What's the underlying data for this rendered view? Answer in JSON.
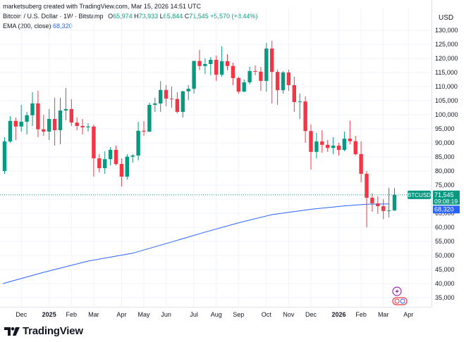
{
  "header": {
    "credit": "marketsuberg created with TradingView.com, Mar 15, 2026 14:51 UTC"
  },
  "legend": {
    "symbol": "Bitcoin / U.S. Dollar · 1W · Bitstamp",
    "o_label": "O",
    "o_value": "65,974",
    "h_label": "H",
    "h_value": "73,933",
    "l_label": "L",
    "l_value": "65,844",
    "c_label": "C",
    "c_value": "71,545",
    "change": "+5,570 (+8.44%)",
    "ema_label": "EMA (200, close)",
    "ema_value": "68,320"
  },
  "axis": {
    "currency": "USD",
    "price_tag_symbol": "BTCUSD",
    "price_tag_value": "71,545",
    "price_tag_countdown": "09:08:19",
    "ema_tag_value": "68,320"
  },
  "footer": {
    "brand": "TradingView"
  },
  "colors": {
    "up": "#089981",
    "down": "#f23645",
    "ema": "#2962ff",
    "grid": "#f0f3fa"
  },
  "chart_data": {
    "type": "candlestick",
    "symbol": "BTCUSD",
    "timeframe": "1W",
    "ylim": [
      31000,
      132000
    ],
    "yticks": [
      35000,
      40000,
      45000,
      50000,
      55000,
      60000,
      65000,
      70000,
      75000,
      80000,
      85000,
      90000,
      95000,
      100000,
      105000,
      110000,
      115000,
      120000,
      125000,
      130000
    ],
    "ytick_labels": [
      "35,000",
      "40,000",
      "45,000",
      "50,000",
      "55,000",
      "60,000",
      "65,000",
      "70,000",
      "75,000",
      "80,000",
      "85,000",
      "90,000",
      "95,000",
      "100,000",
      "105,000",
      "110,000",
      "115,000",
      "120,000",
      "125,000",
      "130,000"
    ],
    "xticks": [
      {
        "label": "Dec",
        "index": 3,
        "bold": false
      },
      {
        "label": "2025",
        "index": 8,
        "bold": true
      },
      {
        "label": "Feb",
        "index": 12,
        "bold": false
      },
      {
        "label": "Mar",
        "index": 16,
        "bold": false
      },
      {
        "label": "Apr",
        "index": 21,
        "bold": false
      },
      {
        "label": "May",
        "index": 25,
        "bold": false
      },
      {
        "label": "Jun",
        "index": 29,
        "bold": false
      },
      {
        "label": "Jul",
        "index": 34,
        "bold": false
      },
      {
        "label": "Aug",
        "index": 38,
        "bold": false
      },
      {
        "label": "Sep",
        "index": 42,
        "bold": false
      },
      {
        "label": "Oct",
        "index": 47,
        "bold": false
      },
      {
        "label": "Nov",
        "index": 51,
        "bold": false
      },
      {
        "label": "Dec",
        "index": 55,
        "bold": false
      },
      {
        "label": "2026",
        "index": 60,
        "bold": true
      },
      {
        "label": "Feb",
        "index": 64,
        "bold": false
      },
      {
        "label": "Mar",
        "index": 68,
        "bold": false
      },
      {
        "label": "Apr",
        "index": 72.5,
        "bold": false
      }
    ],
    "candles": [
      {
        "o": 80000,
        "h": 92000,
        "l": 79000,
        "c": 90500
      },
      {
        "o": 90500,
        "h": 99500,
        "l": 90000,
        "c": 97800
      },
      {
        "o": 97800,
        "h": 99000,
        "l": 91000,
        "c": 95800
      },
      {
        "o": 95800,
        "h": 103500,
        "l": 94000,
        "c": 97500
      },
      {
        "o": 97500,
        "h": 101000,
        "l": 93000,
        "c": 99800
      },
      {
        "o": 99800,
        "h": 108000,
        "l": 96000,
        "c": 104000
      },
      {
        "o": 104000,
        "h": 108500,
        "l": 92000,
        "c": 94800
      },
      {
        "o": 94800,
        "h": 100000,
        "l": 92500,
        "c": 94000
      },
      {
        "o": 94000,
        "h": 102000,
        "l": 91000,
        "c": 98500
      },
      {
        "o": 98500,
        "h": 106000,
        "l": 89000,
        "c": 94500
      },
      {
        "o": 94500,
        "h": 106000,
        "l": 89500,
        "c": 101500
      },
      {
        "o": 101500,
        "h": 109500,
        "l": 98000,
        "c": 102000
      },
      {
        "o": 102000,
        "h": 105500,
        "l": 96000,
        "c": 97200
      },
      {
        "o": 97200,
        "h": 99000,
        "l": 94500,
        "c": 96000
      },
      {
        "o": 96000,
        "h": 98500,
        "l": 93000,
        "c": 95500
      },
      {
        "o": 95500,
        "h": 97000,
        "l": 94000,
        "c": 95800
      },
      {
        "o": 95800,
        "h": 96500,
        "l": 78000,
        "c": 84500
      },
      {
        "o": 84500,
        "h": 86000,
        "l": 79500,
        "c": 81000
      },
      {
        "o": 81000,
        "h": 87000,
        "l": 79000,
        "c": 84200
      },
      {
        "o": 84200,
        "h": 88500,
        "l": 82000,
        "c": 87500
      },
      {
        "o": 87500,
        "h": 89000,
        "l": 82000,
        "c": 82500
      },
      {
        "o": 82500,
        "h": 84500,
        "l": 74500,
        "c": 78000
      },
      {
        "o": 78000,
        "h": 86000,
        "l": 77000,
        "c": 85100
      },
      {
        "o": 85100,
        "h": 86000,
        "l": 83000,
        "c": 85500
      },
      {
        "o": 85500,
        "h": 97500,
        "l": 83800,
        "c": 94300
      },
      {
        "o": 94300,
        "h": 97700,
        "l": 92500,
        "c": 94000
      },
      {
        "o": 94000,
        "h": 104300,
        "l": 93800,
        "c": 103500
      },
      {
        "o": 103500,
        "h": 106000,
        "l": 101000,
        "c": 104000
      },
      {
        "o": 104000,
        "h": 111900,
        "l": 101000,
        "c": 108800
      },
      {
        "o": 108800,
        "h": 110500,
        "l": 103000,
        "c": 105700
      },
      {
        "o": 105700,
        "h": 110000,
        "l": 102500,
        "c": 105600
      },
      {
        "o": 105600,
        "h": 108000,
        "l": 100500,
        "c": 101000
      },
      {
        "o": 101000,
        "h": 108500,
        "l": 99000,
        "c": 108300
      },
      {
        "o": 108300,
        "h": 110500,
        "l": 105200,
        "c": 109200
      },
      {
        "o": 109200,
        "h": 119000,
        "l": 107500,
        "c": 119100
      },
      {
        "o": 119100,
        "h": 123000,
        "l": 115800,
        "c": 117300
      },
      {
        "o": 117300,
        "h": 120000,
        "l": 114500,
        "c": 118000
      },
      {
        "o": 118000,
        "h": 120500,
        "l": 114000,
        "c": 119500
      },
      {
        "o": 119500,
        "h": 121000,
        "l": 112000,
        "c": 114200
      },
      {
        "o": 114200,
        "h": 124300,
        "l": 113500,
        "c": 119000
      },
      {
        "o": 119000,
        "h": 121500,
        "l": 115800,
        "c": 117300
      },
      {
        "o": 117300,
        "h": 118500,
        "l": 110500,
        "c": 113000
      },
      {
        "o": 113000,
        "h": 113500,
        "l": 107500,
        "c": 108200
      },
      {
        "o": 108200,
        "h": 112500,
        "l": 108000,
        "c": 111500
      },
      {
        "o": 111500,
        "h": 117000,
        "l": 110800,
        "c": 115500
      },
      {
        "o": 115500,
        "h": 117500,
        "l": 114000,
        "c": 115300
      },
      {
        "o": 115300,
        "h": 117000,
        "l": 108500,
        "c": 112000
      },
      {
        "o": 112000,
        "h": 125500,
        "l": 108200,
        "c": 123500
      },
      {
        "o": 123500,
        "h": 126300,
        "l": 104000,
        "c": 115200
      },
      {
        "o": 115200,
        "h": 116000,
        "l": 103500,
        "c": 108700
      },
      {
        "o": 108700,
        "h": 115500,
        "l": 107500,
        "c": 115000
      },
      {
        "o": 115000,
        "h": 116000,
        "l": 108500,
        "c": 110500
      },
      {
        "o": 110500,
        "h": 113500,
        "l": 101000,
        "c": 104500
      },
      {
        "o": 104500,
        "h": 107500,
        "l": 98500,
        "c": 104700
      },
      {
        "o": 104700,
        "h": 106500,
        "l": 90000,
        "c": 94200
      },
      {
        "o": 94200,
        "h": 96500,
        "l": 80500,
        "c": 86800
      },
      {
        "o": 86800,
        "h": 93500,
        "l": 84500,
        "c": 90500
      },
      {
        "o": 90500,
        "h": 94500,
        "l": 86500,
        "c": 89300
      },
      {
        "o": 89300,
        "h": 91000,
        "l": 86800,
        "c": 88200
      },
      {
        "o": 88200,
        "h": 92000,
        "l": 86000,
        "c": 89000
      },
      {
        "o": 89000,
        "h": 90000,
        "l": 85500,
        "c": 87500
      },
      {
        "o": 87500,
        "h": 94000,
        "l": 87000,
        "c": 91500
      },
      {
        "o": 91500,
        "h": 97900,
        "l": 89500,
        "c": 90600
      },
      {
        "o": 90600,
        "h": 92500,
        "l": 85500,
        "c": 86000
      },
      {
        "o": 86000,
        "h": 90500,
        "l": 76000,
        "c": 79000
      },
      {
        "o": 79000,
        "h": 80000,
        "l": 60000,
        "c": 70500
      },
      {
        "o": 70500,
        "h": 72000,
        "l": 65500,
        "c": 68500
      },
      {
        "o": 68500,
        "h": 71000,
        "l": 64800,
        "c": 67500
      },
      {
        "o": 67500,
        "h": 70000,
        "l": 62900,
        "c": 65800
      },
      {
        "o": 65800,
        "h": 74000,
        "l": 63500,
        "c": 65974
      },
      {
        "o": 65974,
        "h": 73933,
        "l": 65844,
        "c": 71545
      }
    ],
    "ema": {
      "name": "EMA (200, close)",
      "points": [
        {
          "index": -0.3,
          "v": 40000
        },
        {
          "index": 7,
          "v": 44000
        },
        {
          "index": 15,
          "v": 48000
        },
        {
          "index": 23,
          "v": 50800
        },
        {
          "index": 30,
          "v": 54800
        },
        {
          "index": 36,
          "v": 58300
        },
        {
          "index": 42,
          "v": 61600
        },
        {
          "index": 48,
          "v": 64500
        },
        {
          "index": 55,
          "v": 66400
        },
        {
          "index": 61,
          "v": 67600
        },
        {
          "index": 65,
          "v": 68200
        },
        {
          "index": 69,
          "v": 68320
        }
      ]
    }
  }
}
